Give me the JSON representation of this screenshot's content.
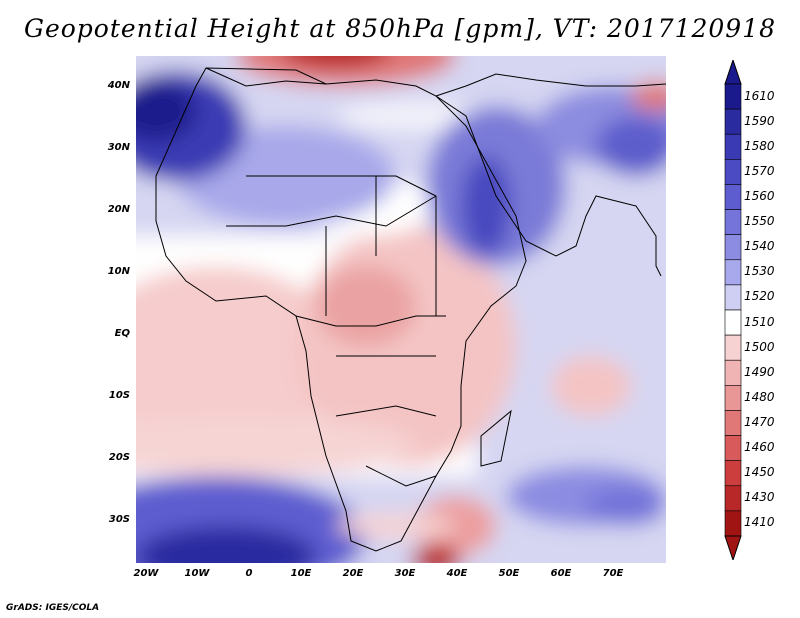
{
  "title": "Geopotential Height at 850hPa [gpm], VT: 2017120918",
  "lat_labels": [
    "40N",
    "30N",
    "20N",
    "10N",
    "EQ",
    "10S",
    "20S",
    "30S"
  ],
  "lon_labels": [
    "20W",
    "10W",
    "0",
    "10E",
    "20E",
    "30E",
    "40E",
    "50E",
    "60E",
    "70E"
  ],
  "colorbar": {
    "levels": [
      "1610",
      "1590",
      "1580",
      "1570",
      "1560",
      "1550",
      "1540",
      "1530",
      "1520",
      "1510",
      "1500",
      "1490",
      "1480",
      "1470",
      "1460",
      "1450",
      "1430",
      "1410"
    ],
    "colors": [
      "#1a1a8c",
      "#2b2ba0",
      "#3a3ab4",
      "#4b4bc4",
      "#5d5dd0",
      "#7474da",
      "#8c8ce2",
      "#a8a8ec",
      "#cfcff4",
      "#ffffff",
      "#f6d2d2",
      "#f0b4b4",
      "#e89696",
      "#e07878",
      "#d85a5a",
      "#cc3e3e",
      "#b82828",
      "#a01414"
    ]
  },
  "credit": "GrADS: IGES/COLA"
}
